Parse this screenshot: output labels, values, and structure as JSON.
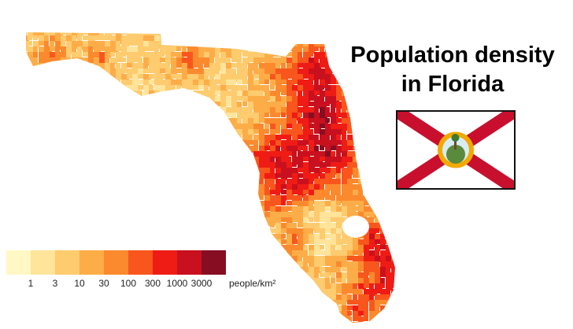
{
  "title": {
    "line1": "Population density",
    "line2": "in Florida"
  },
  "legend": {
    "colors": [
      "#fff8c4",
      "#ffe49a",
      "#fecb6e",
      "#fdad48",
      "#fb8a2e",
      "#f9561d",
      "#ef1c15",
      "#c9101e",
      "#870d22"
    ],
    "ticks": [
      "1",
      "3",
      "10",
      "30",
      "100",
      "300",
      "1000",
      "3000"
    ],
    "unit": "people/km²"
  },
  "flag": {
    "field": "#ffffff",
    "saltire": "#c8102e",
    "seal_ring": "#f2a900",
    "seal_inner": "#5a8a3c"
  }
}
